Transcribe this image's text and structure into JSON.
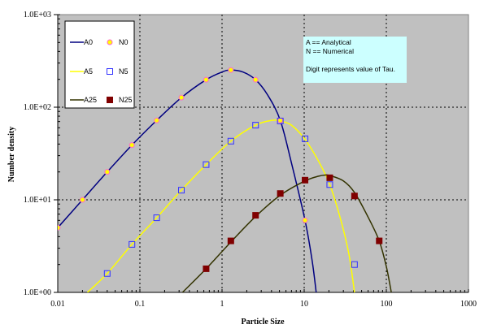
{
  "chart_data": {
    "type": "scatter",
    "title": "",
    "xlabel": "Particle Size",
    "ylabel": "Number density",
    "xscale": "log",
    "yscale": "log",
    "xlim": [
      0.01,
      1000
    ],
    "ylim": [
      1,
      1000
    ],
    "x_ticks": [
      "0.01",
      "0.1",
      "1",
      "10",
      "100",
      "1000"
    ],
    "y_ticks": [
      "1.0E+00",
      "1.0E+01",
      "1.0E+02",
      "1.0E+03"
    ],
    "grid": true,
    "legend_position": "upper-left",
    "series": [
      {
        "name": "A0",
        "kind": "line",
        "color": "#000080",
        "x": [
          0.01,
          0.02,
          0.04,
          0.08,
          0.16,
          0.32,
          0.64,
          1.0,
          1.28,
          1.8,
          2.56,
          3.6,
          5.12,
          7.0,
          10.24,
          12.5,
          14.0
        ],
        "y": [
          5.0,
          10,
          20,
          39,
          72,
          127,
          198,
          240,
          252,
          240,
          198,
          135,
          72,
          25,
          6.0,
          2.2,
          1.0
        ]
      },
      {
        "name": "N0",
        "kind": "marker",
        "marker": "circle",
        "color": "#ffff00",
        "edge": "#ff66cc",
        "x": [
          0.01,
          0.02,
          0.04,
          0.08,
          0.16,
          0.32,
          0.64,
          1.28,
          2.56,
          5.12,
          10.24
        ],
        "y": [
          5.0,
          10,
          20,
          39,
          72,
          127,
          198,
          252,
          198,
          72,
          6.0
        ]
      },
      {
        "name": "A5",
        "kind": "line",
        "color": "#ffff00",
        "x": [
          0.023,
          0.04,
          0.08,
          0.16,
          0.32,
          0.64,
          1.28,
          2.56,
          4.0,
          5.12,
          7.0,
          10.24,
          15.0,
          20.48,
          28.0,
          35.0,
          41.0
        ],
        "y": [
          1.0,
          1.6,
          3.3,
          6.4,
          12.7,
          24,
          43,
          64,
          72,
          71,
          64,
          45,
          26,
          14.6,
          6.0,
          2.6,
          1.0
        ]
      },
      {
        "name": "N5",
        "kind": "marker",
        "marker": "square",
        "color": "none",
        "edge": "#3333ff",
        "x": [
          0.04,
          0.08,
          0.16,
          0.32,
          0.64,
          1.28,
          2.56,
          5.12,
          10.24,
          20.48,
          40.96
        ],
        "y": [
          1.6,
          3.3,
          6.4,
          12.7,
          24,
          43,
          64,
          71,
          45.6,
          14.6,
          2.0
        ]
      },
      {
        "name": "A25",
        "kind": "line",
        "color": "#333300",
        "x": [
          0.33,
          0.64,
          1.28,
          2.56,
          5.12,
          10.24,
          15.0,
          18.0,
          20.48,
          30.0,
          40.96,
          60.0,
          81.92,
          100.0,
          115.0
        ],
        "y": [
          1.0,
          1.8,
          3.5,
          6.6,
          11.2,
          16.0,
          18.0,
          18.5,
          18.3,
          16.0,
          12.0,
          6.5,
          3.6,
          1.9,
          1.0
        ]
      },
      {
        "name": "N25",
        "kind": "marker",
        "marker": "square-filled",
        "color": "#800000",
        "edge": "#800000",
        "x": [
          0.64,
          1.28,
          2.56,
          5.12,
          10.24,
          20.48,
          40.96,
          81.92
        ],
        "y": [
          1.8,
          3.6,
          6.8,
          11.7,
          16.3,
          17.3,
          11.0,
          3.6
        ]
      }
    ],
    "annotations": [
      "A == Analytical",
      "N == Numerical",
      "Digit represents value of Tau."
    ]
  },
  "legend": {
    "items": [
      {
        "label": "A0"
      },
      {
        "label": "N0"
      },
      {
        "label": "A5"
      },
      {
        "label": "N5"
      },
      {
        "label": "A25"
      },
      {
        "label": "N25"
      }
    ]
  },
  "note": {
    "line1": "A == Analytical",
    "line2": "N == Numerical",
    "line3": "Digit represents value of Tau."
  },
  "colors": {
    "plot_background": "#c0c0c0",
    "note_background": "#ccffff",
    "gridline": "#000000"
  }
}
